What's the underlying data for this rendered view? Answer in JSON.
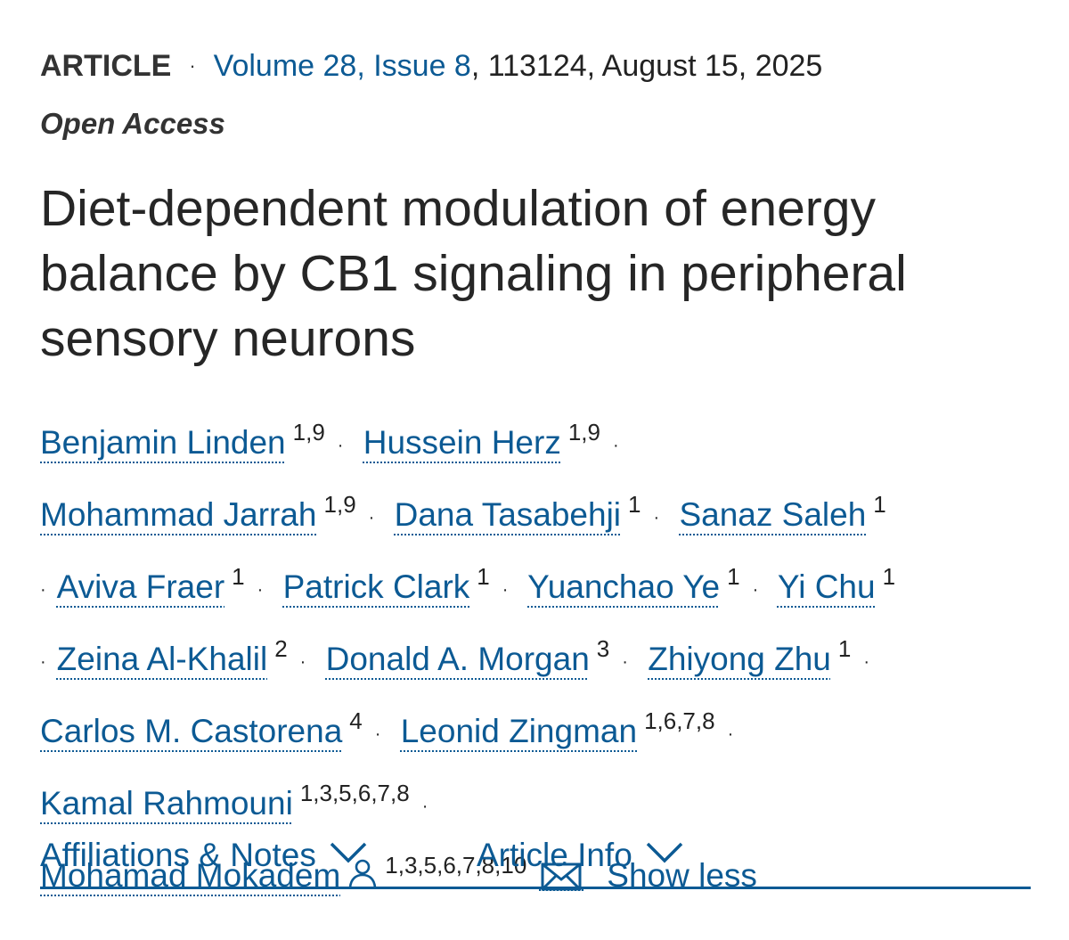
{
  "header": {
    "article_type": "ARTICLE",
    "separator": "·",
    "volume_issue": "Volume 28, Issue 8",
    "citation_rest": ", 113124, August 15, 2025",
    "access": "Open Access"
  },
  "article": {
    "title": "Diet-dependent modulation of energy balance by CB1 signaling in peripheral sensory neurons"
  },
  "authors": [
    {
      "name": "Benjamin Linden",
      "aff": "1,9"
    },
    {
      "name": "Hussein Herz",
      "aff": "1,9"
    },
    {
      "name": "Mohammad Jarrah",
      "aff": "1,9"
    },
    {
      "name": "Dana Tasabehji",
      "aff": "1"
    },
    {
      "name": "Sanaz Saleh",
      "aff": "1"
    },
    {
      "name": "Aviva Fraer",
      "aff": "1"
    },
    {
      "name": "Patrick Clark",
      "aff": "1"
    },
    {
      "name": "Yuanchao Ye",
      "aff": "1"
    },
    {
      "name": "Yi Chu",
      "aff": "1"
    },
    {
      "name": "Zeina Al-Khalil",
      "aff": "2"
    },
    {
      "name": "Donald A. Morgan",
      "aff": "3"
    },
    {
      "name": "Zhiyong Zhu",
      "aff": "1"
    },
    {
      "name": "Carlos M. Castorena",
      "aff": "4"
    },
    {
      "name": "Leonid Zingman",
      "aff": "1,6,7,8"
    },
    {
      "name": "Kamal Rahmouni",
      "aff": "1,3,5,6,7,8"
    },
    {
      "name": "Mohamad Mokadem",
      "aff": "1,3,5,6,7,8,10",
      "corresponding": true
    }
  ],
  "author_separator": "·",
  "show_less_label": "Show less",
  "tabs": [
    {
      "label": "Affiliations & Notes"
    },
    {
      "label": "Article Info"
    }
  ],
  "colors": {
    "link": "#0c5a94",
    "text": "#222222",
    "rule": "#0c5a94"
  },
  "icons": {
    "corresponding_author": "person-icon",
    "email": "envelope-icon",
    "expand": "chevron-down-icon"
  }
}
